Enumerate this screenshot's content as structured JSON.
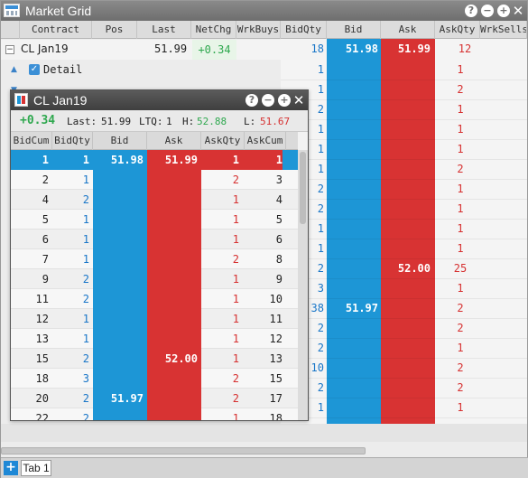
{
  "window": {
    "title": "Market Grid"
  },
  "title_buttons": [
    {
      "icon": "help-icon",
      "glyph": "?"
    },
    {
      "icon": "minimize-icon",
      "glyph": "−"
    },
    {
      "icon": "maximize-icon",
      "glyph": "+"
    },
    {
      "icon": "close-icon",
      "glyph": "✕"
    }
  ],
  "grid": {
    "columns": [
      "Contract",
      "Pos",
      "Last",
      "NetChg",
      "WrkBuys",
      "BidQty",
      "Bid",
      "Ask",
      "AskQty",
      "WrkSells"
    ],
    "instrument": {
      "contract": "CL Jan19",
      "last": "51.99",
      "netchg": "+0.34",
      "bidqty": "18",
      "bid": "51.98",
      "ask": "51.99",
      "askqty": "12"
    },
    "detail_label": "Detail",
    "rows": [
      {
        "bidqty": "1",
        "askqty": "1"
      },
      {
        "bidqty": "1",
        "askqty": "2"
      },
      {
        "bidqty": "2",
        "askqty": "1"
      },
      {
        "bidqty": "1",
        "askqty": "1"
      },
      {
        "bidqty": "1",
        "askqty": "1"
      },
      {
        "bidqty": "1",
        "askqty": "2"
      },
      {
        "bidqty": "2",
        "askqty": "1"
      },
      {
        "bidqty": "2",
        "askqty": "1"
      },
      {
        "bidqty": "1",
        "askqty": "1"
      },
      {
        "bidqty": "1",
        "askqty": "1"
      },
      {
        "bidqty": "2",
        "ask": "52.00",
        "askqty": "25"
      },
      {
        "bidqty": "3",
        "askqty": "1"
      },
      {
        "bidqty": "38",
        "bid": "51.97",
        "askqty": "2"
      },
      {
        "bidqty": "2",
        "askqty": "2"
      },
      {
        "bidqty": "2",
        "askqty": "1"
      },
      {
        "bidqty": "10",
        "askqty": "2"
      },
      {
        "bidqty": "2",
        "askqty": "2"
      },
      {
        "bidqty": "1",
        "askqty": "1"
      }
    ]
  },
  "ladder": {
    "title": "CL Jan19",
    "netchg": "+0.34",
    "last_label": "Last:",
    "last": "51.99",
    "ltq_label": "LTQ:",
    "ltq": "1",
    "high_label": "H:",
    "high": "52.88",
    "low_label": "L:",
    "low": "51.67",
    "columns": [
      "BidCum",
      "BidQty",
      "Bid",
      "Ask",
      "AskQty",
      "AskCum"
    ],
    "rows": [
      {
        "bidcum": "1",
        "bidqty": "1",
        "bid": "51.98",
        "ask": "51.99",
        "askqty": "1",
        "askcum": "1"
      },
      {
        "bidcum": "2",
        "bidqty": "1",
        "bid": "",
        "ask": "",
        "askqty": "2",
        "askcum": "3"
      },
      {
        "bidcum": "4",
        "bidqty": "2",
        "bid": "",
        "ask": "",
        "askqty": "1",
        "askcum": "4"
      },
      {
        "bidcum": "5",
        "bidqty": "1",
        "bid": "",
        "ask": "",
        "askqty": "1",
        "askcum": "5"
      },
      {
        "bidcum": "6",
        "bidqty": "1",
        "bid": "",
        "ask": "",
        "askqty": "1",
        "askcum": "6"
      },
      {
        "bidcum": "7",
        "bidqty": "1",
        "bid": "",
        "ask": "",
        "askqty": "2",
        "askcum": "8"
      },
      {
        "bidcum": "9",
        "bidqty": "2",
        "bid": "",
        "ask": "",
        "askqty": "1",
        "askcum": "9"
      },
      {
        "bidcum": "11",
        "bidqty": "2",
        "bid": "",
        "ask": "",
        "askqty": "1",
        "askcum": "10"
      },
      {
        "bidcum": "12",
        "bidqty": "1",
        "bid": "",
        "ask": "",
        "askqty": "1",
        "askcum": "11"
      },
      {
        "bidcum": "13",
        "bidqty": "1",
        "bid": "",
        "ask": "",
        "askqty": "1",
        "askcum": "12"
      },
      {
        "bidcum": "15",
        "bidqty": "2",
        "bid": "",
        "ask": "52.00",
        "askqty": "1",
        "askcum": "13"
      },
      {
        "bidcum": "18",
        "bidqty": "3",
        "bid": "",
        "ask": "",
        "askqty": "2",
        "askcum": "15"
      },
      {
        "bidcum": "20",
        "bidqty": "2",
        "bid": "51.97",
        "ask": "",
        "askqty": "2",
        "askcum": "17"
      },
      {
        "bidcum": "22",
        "bidqty": "2",
        "bid": "",
        "ask": "",
        "askqty": "1",
        "askcum": "18"
      }
    ]
  },
  "tabs": {
    "add_glyph": "+",
    "tab1": "Tab 1"
  }
}
